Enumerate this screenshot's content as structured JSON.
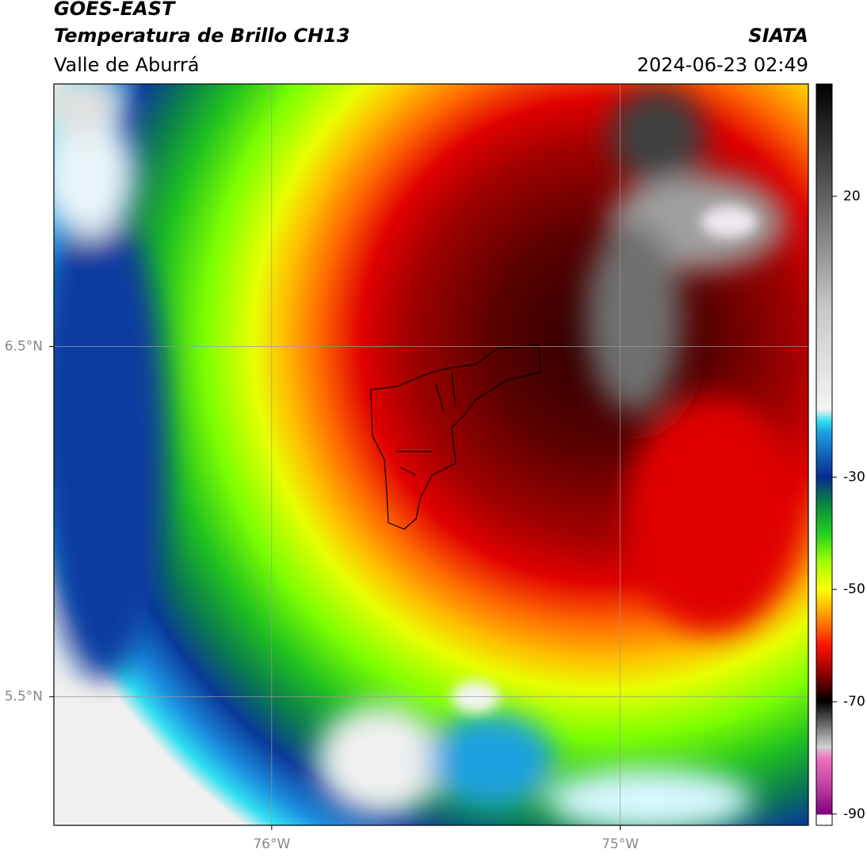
{
  "header": {
    "title": "GOES-EAST",
    "subtitle": "Temperatura de Brillo CH13",
    "region": "Valle de Aburrá",
    "agency": "SIATA",
    "timestamp": "2024-06-23 02:49"
  },
  "map": {
    "xlim": [
      -76.625,
      -74.46
    ],
    "ylim": [
      5.133,
      7.25
    ],
    "xticks": [
      {
        "value": -76,
        "label": "76°W"
      },
      {
        "value": -75,
        "label": "75°W"
      }
    ],
    "yticks": [
      {
        "value": 5.5,
        "label": "5.5°N"
      },
      {
        "value": 6.5,
        "label": "6.5°N"
      }
    ]
  },
  "colorbar": {
    "lim": [
      -92,
      40
    ],
    "ticks": [
      20,
      -30,
      -50,
      -70,
      -90
    ]
  }
}
